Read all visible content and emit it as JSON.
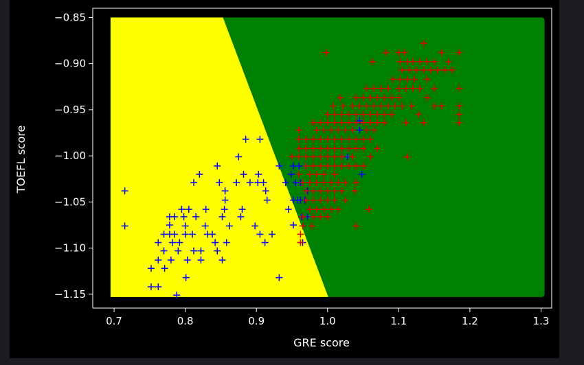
{
  "chart_data": {
    "type": "scatter",
    "title": "",
    "xlabel": "GRE score",
    "ylabel": "TOEFL score",
    "xlim": [
      0.67,
      1.315
    ],
    "ylim": [
      -1.165,
      -0.84
    ],
    "xticks": [
      0.7,
      0.8,
      0.9,
      1.0,
      1.1,
      1.2,
      1.3
    ],
    "yticks": [
      -0.85,
      -0.9,
      -0.95,
      -1.0,
      -1.05,
      -1.1,
      -1.15
    ],
    "xtick_labels": [
      "0.7",
      "0.8",
      "0.9",
      "1.0",
      "1.1",
      "1.2",
      "1.3"
    ],
    "ytick_labels": [
      "−0.85",
      "−0.90",
      "−0.95",
      "−1.00",
      "−1.05",
      "−1.10",
      "−1.15"
    ],
    "grid": false,
    "legend": "none",
    "colors": {
      "figure_bg": "#000000",
      "page_bg": "#1b1d22",
      "axes": "#ffffff",
      "region_a": "#ffff00",
      "region_b": "#008000",
      "series_a": "#0000ff",
      "series_b": "#e00000"
    },
    "decision_regions": {
      "x_range": [
        0.695,
        1.305
      ],
      "y_range": [
        -1.153,
        -0.85
      ],
      "boundary": [
        [
          0.853,
          -0.85
        ],
        [
          1.001,
          -1.153
        ]
      ],
      "left_color": "#ffff00",
      "right_color": "#008000"
    },
    "series": [
      {
        "marker": "+",
        "color": "#0000ff",
        "points": [
          [
            0.715,
            -1.038
          ],
          [
            0.715,
            -1.076
          ],
          [
            0.752,
            -1.122
          ],
          [
            0.752,
            -1.142
          ],
          [
            0.762,
            -1.142
          ],
          [
            0.762,
            -1.113
          ],
          [
            0.762,
            -1.094
          ],
          [
            0.77,
            -1.085
          ],
          [
            0.77,
            -1.103
          ],
          [
            0.771,
            -1.122
          ],
          [
            0.778,
            -1.075
          ],
          [
            0.778,
            -1.085
          ],
          [
            0.778,
            -1.066
          ],
          [
            0.78,
            -1.113
          ],
          [
            0.782,
            -1.094
          ],
          [
            0.785,
            -1.085
          ],
          [
            0.785,
            -1.066
          ],
          [
            0.788,
            -1.151
          ],
          [
            0.79,
            -1.103
          ],
          [
            0.792,
            -1.094
          ],
          [
            0.795,
            -1.058
          ],
          [
            0.798,
            -1.066
          ],
          [
            0.8,
            -1.076
          ],
          [
            0.8,
            -1.085
          ],
          [
            0.801,
            -1.132
          ],
          [
            0.803,
            -1.113
          ],
          [
            0.805,
            -1.058
          ],
          [
            0.81,
            -1.085
          ],
          [
            0.812,
            -1.029
          ],
          [
            0.812,
            -1.103
          ],
          [
            0.815,
            -1.066
          ],
          [
            0.82,
            -1.02
          ],
          [
            0.822,
            -1.113
          ],
          [
            0.822,
            -1.103
          ],
          [
            0.828,
            -1.076
          ],
          [
            0.829,
            -1.058
          ],
          [
            0.831,
            -1.085
          ],
          [
            0.838,
            -1.085
          ],
          [
            0.842,
            -1.094
          ],
          [
            0.845,
            -1.011
          ],
          [
            0.845,
            -1.103
          ],
          [
            0.848,
            -1.029
          ],
          [
            0.852,
            -1.113
          ],
          [
            0.852,
            -1.066
          ],
          [
            0.855,
            -1.058
          ],
          [
            0.856,
            -1.048
          ],
          [
            0.856,
            -1.038
          ],
          [
            0.858,
            -1.094
          ],
          [
            0.862,
            -1.076
          ],
          [
            0.872,
            -1.029
          ],
          [
            0.875,
            -1.001
          ],
          [
            0.878,
            -1.066
          ],
          [
            0.88,
            -1.058
          ],
          [
            0.882,
            -1.02
          ],
          [
            0.885,
            -0.982
          ],
          [
            0.891,
            -1.029
          ],
          [
            0.898,
            -1.076
          ],
          [
            0.902,
            -1.029
          ],
          [
            0.903,
            -1.02
          ],
          [
            0.905,
            -0.982
          ],
          [
            0.905,
            -1.085
          ],
          [
            0.91,
            -1.029
          ],
          [
            0.912,
            -1.094
          ],
          [
            0.913,
            -1.038
          ],
          [
            0.915,
            -1.048
          ],
          [
            0.922,
            -1.085
          ],
          [
            0.932,
            -1.132
          ],
          [
            0.932,
            -1.011
          ],
          [
            0.941,
            -1.029
          ],
          [
            0.945,
            -1.058
          ],
          [
            0.949,
            -1.02
          ],
          [
            0.952,
            -1.011
          ],
          [
            0.952,
            -1.075
          ],
          [
            0.952,
            -1.048
          ],
          [
            0.955,
            -1.029
          ],
          [
            0.958,
            -1.048
          ],
          [
            0.96,
            -1.011
          ],
          [
            0.962,
            -1.029
          ],
          [
            0.962,
            -1.048
          ],
          [
            0.964,
            -1.066
          ],
          [
            0.965,
            -1.094
          ],
          [
            0.968,
            -1.048
          ],
          [
            0.972,
            -1.066
          ],
          [
            0.972,
            -1.038
          ],
          [
            1.028,
            -1.001
          ],
          [
            1.045,
            -0.962
          ],
          [
            1.045,
            -0.972
          ],
          [
            1.048,
            -1.02
          ]
        ]
      },
      {
        "marker": "+",
        "color": "#e00000",
        "points": [
          [
            0.998,
            -0.888
          ],
          [
            1.063,
            -0.898
          ],
          [
            1.082,
            -0.888
          ],
          [
            1.1,
            -0.888
          ],
          [
            1.108,
            -0.888
          ],
          [
            1.135,
            -0.878
          ],
          [
            1.185,
            -0.888
          ],
          [
            1.16,
            -0.888
          ],
          [
            1.102,
            -0.898
          ],
          [
            1.112,
            -0.898
          ],
          [
            1.12,
            -0.898
          ],
          [
            1.13,
            -0.898
          ],
          [
            1.14,
            -0.898
          ],
          [
            1.15,
            -0.898
          ],
          [
            1.17,
            -0.898
          ],
          [
            1.105,
            -0.907
          ],
          [
            1.115,
            -0.907
          ],
          [
            1.125,
            -0.907
          ],
          [
            1.135,
            -0.907
          ],
          [
            1.145,
            -0.907
          ],
          [
            1.155,
            -0.907
          ],
          [
            1.165,
            -0.907
          ],
          [
            1.175,
            -0.907
          ],
          [
            1.092,
            -0.917
          ],
          [
            1.102,
            -0.917
          ],
          [
            1.112,
            -0.917
          ],
          [
            1.122,
            -0.917
          ],
          [
            1.14,
            -0.917
          ],
          [
            1.055,
            -0.927
          ],
          [
            1.065,
            -0.927
          ],
          [
            1.075,
            -0.927
          ],
          [
            1.085,
            -0.927
          ],
          [
            1.1,
            -0.927
          ],
          [
            1.11,
            -0.927
          ],
          [
            1.12,
            -0.927
          ],
          [
            1.13,
            -0.927
          ],
          [
            1.15,
            -0.927
          ],
          [
            1.185,
            -0.927
          ],
          [
            1.018,
            -0.937
          ],
          [
            1.04,
            -0.937
          ],
          [
            1.05,
            -0.937
          ],
          [
            1.06,
            -0.937
          ],
          [
            1.07,
            -0.937
          ],
          [
            1.08,
            -0.937
          ],
          [
            1.09,
            -0.937
          ],
          [
            1.1,
            -0.937
          ],
          [
            1.14,
            -0.937
          ],
          [
            1.008,
            -0.946
          ],
          [
            1.022,
            -0.946
          ],
          [
            1.035,
            -0.946
          ],
          [
            1.045,
            -0.946
          ],
          [
            1.055,
            -0.946
          ],
          [
            1.065,
            -0.946
          ],
          [
            1.075,
            -0.946
          ],
          [
            1.085,
            -0.946
          ],
          [
            1.095,
            -0.946
          ],
          [
            1.105,
            -0.946
          ],
          [
            1.118,
            -0.946
          ],
          [
            1.15,
            -0.946
          ],
          [
            1.16,
            -0.946
          ],
          [
            1.185,
            -0.946
          ],
          [
            1.0,
            -0.955
          ],
          [
            1.01,
            -0.955
          ],
          [
            1.02,
            -0.955
          ],
          [
            1.03,
            -0.955
          ],
          [
            1.04,
            -0.955
          ],
          [
            1.05,
            -0.955
          ],
          [
            1.06,
            -0.955
          ],
          [
            1.07,
            -0.955
          ],
          [
            1.08,
            -0.955
          ],
          [
            1.09,
            -0.955
          ],
          [
            1.128,
            -0.955
          ],
          [
            1.185,
            -0.955
          ],
          [
            0.98,
            -0.964
          ],
          [
            0.99,
            -0.964
          ],
          [
            1.0,
            -0.964
          ],
          [
            1.01,
            -0.964
          ],
          [
            1.02,
            -0.964
          ],
          [
            1.03,
            -0.964
          ],
          [
            1.04,
            -0.964
          ],
          [
            1.05,
            -0.964
          ],
          [
            1.06,
            -0.964
          ],
          [
            1.07,
            -0.964
          ],
          [
            1.08,
            -0.964
          ],
          [
            1.11,
            -0.964
          ],
          [
            1.135,
            -0.964
          ],
          [
            1.185,
            -0.964
          ],
          [
            0.96,
            -0.972
          ],
          [
            0.985,
            -0.972
          ],
          [
            0.995,
            -0.972
          ],
          [
            1.005,
            -0.972
          ],
          [
            1.015,
            -0.972
          ],
          [
            1.025,
            -0.972
          ],
          [
            1.035,
            -0.972
          ],
          [
            1.055,
            -0.972
          ],
          [
            1.065,
            -0.972
          ],
          [
            0.96,
            -0.982
          ],
          [
            0.97,
            -0.982
          ],
          [
            0.98,
            -0.982
          ],
          [
            0.99,
            -0.982
          ],
          [
            1.0,
            -0.982
          ],
          [
            1.01,
            -0.982
          ],
          [
            1.02,
            -0.982
          ],
          [
            1.03,
            -0.982
          ],
          [
            1.04,
            -0.982
          ],
          [
            1.05,
            -0.982
          ],
          [
            1.06,
            -0.982
          ],
          [
            0.96,
            -0.992
          ],
          [
            0.97,
            -0.992
          ],
          [
            0.98,
            -0.992
          ],
          [
            0.99,
            -0.992
          ],
          [
            1.0,
            -0.992
          ],
          [
            1.01,
            -0.992
          ],
          [
            1.02,
            -0.992
          ],
          [
            1.03,
            -0.992
          ],
          [
            1.04,
            -0.992
          ],
          [
            1.05,
            -0.992
          ],
          [
            1.07,
            -0.992
          ],
          [
            0.95,
            -1.001
          ],
          [
            0.96,
            -1.001
          ],
          [
            0.97,
            -1.001
          ],
          [
            0.98,
            -1.001
          ],
          [
            0.99,
            -1.001
          ],
          [
            1.0,
            -1.001
          ],
          [
            1.01,
            -1.001
          ],
          [
            1.02,
            -1.001
          ],
          [
            1.035,
            -1.001
          ],
          [
            1.06,
            -1.001
          ],
          [
            1.112,
            -1.001
          ],
          [
            0.97,
            -1.011
          ],
          [
            0.98,
            -1.011
          ],
          [
            0.99,
            -1.011
          ],
          [
            1.0,
            -1.011
          ],
          [
            1.01,
            -1.011
          ],
          [
            1.02,
            -1.011
          ],
          [
            1.03,
            -1.011
          ],
          [
            1.04,
            -1.011
          ],
          [
            1.05,
            -1.011
          ],
          [
            0.96,
            -1.02
          ],
          [
            0.975,
            -1.02
          ],
          [
            0.985,
            -1.02
          ],
          [
            0.995,
            -1.02
          ],
          [
            1.01,
            -1.02
          ],
          [
            0.965,
            -1.029
          ],
          [
            0.975,
            -1.029
          ],
          [
            0.985,
            -1.029
          ],
          [
            0.995,
            -1.029
          ],
          [
            1.005,
            -1.029
          ],
          [
            1.015,
            -1.029
          ],
          [
            1.025,
            -1.029
          ],
          [
            1.04,
            -1.029
          ],
          [
            0.97,
            -1.038
          ],
          [
            0.98,
            -1.038
          ],
          [
            0.99,
            -1.038
          ],
          [
            1.0,
            -1.038
          ],
          [
            1.01,
            -1.038
          ],
          [
            1.02,
            -1.038
          ],
          [
            1.038,
            -1.038
          ],
          [
            0.97,
            -1.048
          ],
          [
            0.98,
            -1.048
          ],
          [
            0.99,
            -1.048
          ],
          [
            1.0,
            -1.048
          ],
          [
            1.01,
            -1.048
          ],
          [
            1.025,
            -1.048
          ],
          [
            0.975,
            -1.058
          ],
          [
            0.985,
            -1.058
          ],
          [
            0.995,
            -1.058
          ],
          [
            1.005,
            -1.058
          ],
          [
            1.015,
            -1.058
          ],
          [
            1.058,
            -1.058
          ],
          [
            0.965,
            -1.066
          ],
          [
            0.98,
            -1.066
          ],
          [
            0.99,
            -1.066
          ],
          [
            1.0,
            -1.066
          ],
          [
            0.965,
            -1.076
          ],
          [
            0.978,
            -1.076
          ],
          [
            1.04,
            -1.076
          ],
          [
            0.962,
            -1.085
          ],
          [
            0.962,
            -1.094
          ]
        ]
      }
    ]
  }
}
